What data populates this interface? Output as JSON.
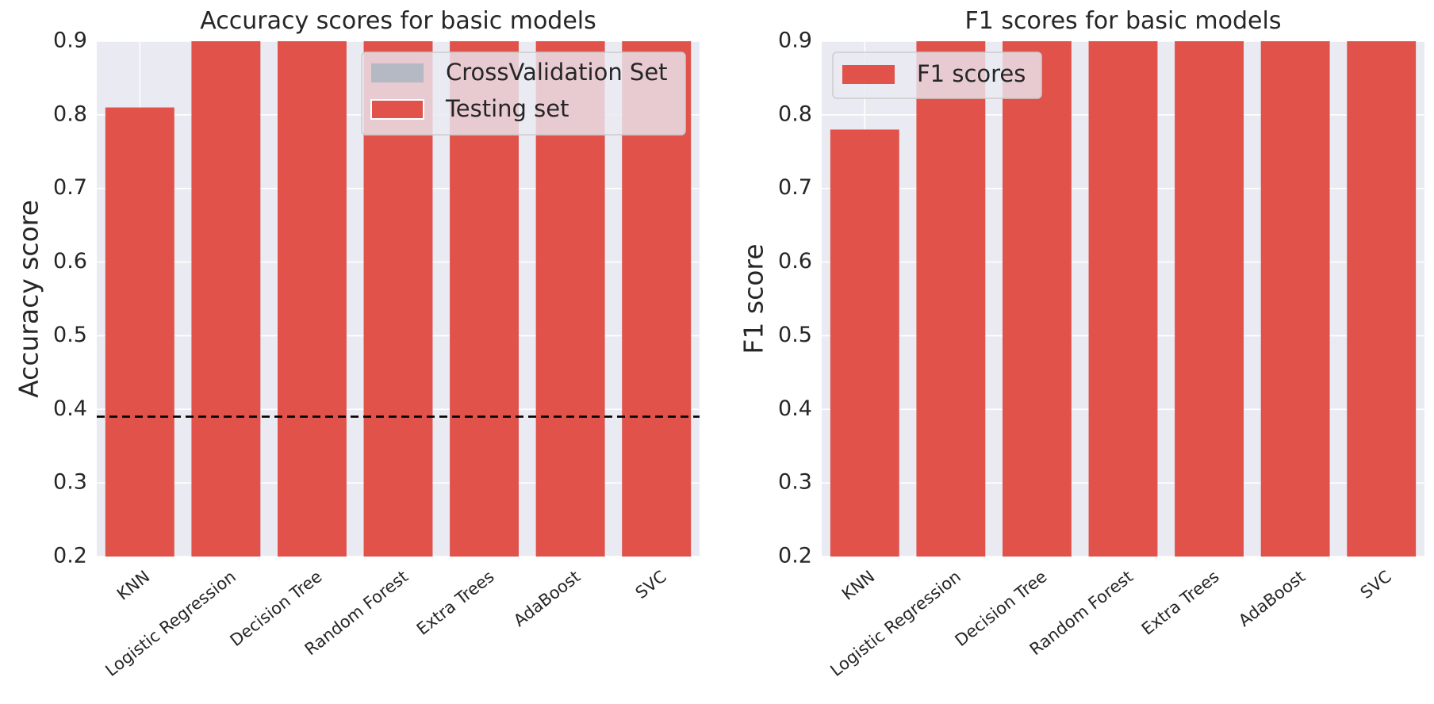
{
  "chart_data": [
    {
      "type": "bar",
      "title": "Accuracy scores for basic models",
      "xlabel": "",
      "ylabel": "Accuracy score",
      "ylim": [
        0.2,
        0.9
      ],
      "yticks": [
        "0.2",
        "0.3",
        "0.4",
        "0.5",
        "0.6",
        "0.7",
        "0.8",
        "0.9"
      ],
      "grid": true,
      "categories": [
        "KNN",
        "Logistic Regression",
        "Decision Tree",
        "Random Forest",
        "Extra Trees",
        "AdaBoost",
        "SVC"
      ],
      "series": [
        {
          "name": "CrossValidation Set",
          "color": "#b4b9c3",
          "values": [
            0.81,
            0.95,
            0.95,
            0.95,
            0.95,
            0.95,
            0.95
          ]
        },
        {
          "name": "Testing set",
          "color": "#e0524a",
          "values": [
            0.81,
            0.95,
            0.95,
            0.95,
            0.95,
            0.95,
            0.95
          ]
        }
      ],
      "reference_line": {
        "y": 0.39,
        "style": "dashed",
        "color": "#000000"
      },
      "legend_position": "top-right"
    },
    {
      "type": "bar",
      "title": "F1 scores for basic models",
      "xlabel": "",
      "ylabel": "F1 score",
      "ylim": [
        0.2,
        0.9
      ],
      "yticks": [
        "0.2",
        "0.3",
        "0.4",
        "0.5",
        "0.6",
        "0.7",
        "0.8",
        "0.9"
      ],
      "grid": true,
      "categories": [
        "KNN",
        "Logistic Regression",
        "Decision Tree",
        "Random Forest",
        "Extra Trees",
        "AdaBoost",
        "SVC"
      ],
      "series": [
        {
          "name": "F1 scores",
          "color": "#e0524a",
          "values": [
            0.78,
            0.95,
            0.95,
            0.95,
            0.95,
            0.95,
            0.95
          ]
        }
      ],
      "legend_position": "top-left"
    }
  ],
  "style": {
    "axes_background": "#eaeaf2",
    "grid_color": "#ffffff",
    "text_color": "#262626"
  }
}
